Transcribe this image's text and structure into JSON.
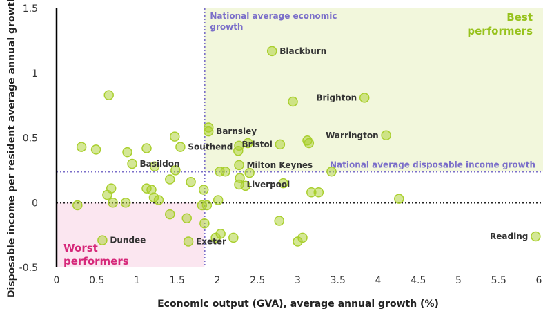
{
  "chart_data": {
    "type": "scatter",
    "xlabel": "Economic output (GVA), average annual growth (%)",
    "ylabel": "Disposable income per resident average annual growth",
    "xlim": [
      0,
      6
    ],
    "ylim": [
      -0.5,
      1.5
    ],
    "xticks": [
      "0",
      "0.5",
      "1",
      "1.5",
      "2",
      "2.5",
      "3",
      "3.5",
      "4",
      "4.5",
      "5",
      "5.5",
      "6"
    ],
    "yticks": [
      "1.5",
      "1",
      "0.5",
      "0",
      "-0.5"
    ],
    "grid": false,
    "reference_lines": {
      "vertical": {
        "x": 1.84,
        "label": "National average economic growth",
        "color": "#7b6fc9"
      },
      "horizontal": {
        "y": 0.24,
        "label": "National average disposable income growth",
        "color": "#7b6fc9"
      },
      "zero": {
        "y": 0,
        "color": "#222222"
      }
    },
    "regions": {
      "best": {
        "label": "Best performers",
        "color": "#f2f7dc",
        "text_color": "#97c21c"
      },
      "worst": {
        "label": "Worst performers",
        "color": "#fbe6f0",
        "text_color": "#d6287a"
      }
    },
    "point_color": "#a9cf2d",
    "points": [
      {
        "x": 0.65,
        "y": 0.83
      },
      {
        "x": 0.31,
        "y": 0.43
      },
      {
        "x": 0.49,
        "y": 0.41
      },
      {
        "x": 0.88,
        "y": 0.39
      },
      {
        "x": 1.12,
        "y": 0.42
      },
      {
        "x": 0.94,
        "y": 0.3,
        "label": "Basildon"
      },
      {
        "x": 1.47,
        "y": 0.51
      },
      {
        "x": 1.54,
        "y": 0.43,
        "label": "Southend"
      },
      {
        "x": 1.22,
        "y": 0.28
      },
      {
        "x": 1.48,
        "y": 0.25
      },
      {
        "x": 1.41,
        "y": 0.18
      },
      {
        "x": 1.67,
        "y": 0.16
      },
      {
        "x": 1.83,
        "y": 0.1
      },
      {
        "x": 0.68,
        "y": 0.11
      },
      {
        "x": 0.63,
        "y": 0.06
      },
      {
        "x": 1.12,
        "y": 0.11
      },
      {
        "x": 1.18,
        "y": 0.1
      },
      {
        "x": 1.21,
        "y": 0.04
      },
      {
        "x": 1.27,
        "y": 0.02
      },
      {
        "x": 0.7,
        "y": 0.0
      },
      {
        "x": 0.86,
        "y": 0.0
      },
      {
        "x": 0.26,
        "y": -0.02
      },
      {
        "x": 1.41,
        "y": -0.09
      },
      {
        "x": 1.62,
        "y": -0.12
      },
      {
        "x": 1.81,
        "y": -0.02
      },
      {
        "x": 1.87,
        "y": -0.02
      },
      {
        "x": 1.84,
        "y": -0.16
      },
      {
        "x": 0.57,
        "y": -0.29,
        "label": "Dundee"
      },
      {
        "x": 1.64,
        "y": -0.3,
        "label": "Exeter"
      },
      {
        "x": 1.89,
        "y": 0.58
      },
      {
        "x": 1.89,
        "y": 0.55,
        "label": "Barnsley"
      },
      {
        "x": 2.27,
        "y": 0.44
      },
      {
        "x": 2.26,
        "y": 0.4
      },
      {
        "x": 2.38,
        "y": 0.46
      },
      {
        "x": 2.27,
        "y": 0.29,
        "label": "Milton Keynes"
      },
      {
        "x": 2.03,
        "y": 0.24
      },
      {
        "x": 2.1,
        "y": 0.24
      },
      {
        "x": 2.4,
        "y": 0.23
      },
      {
        "x": 2.28,
        "y": 0.19
      },
      {
        "x": 2.27,
        "y": 0.14,
        "label": "Liverpool"
      },
      {
        "x": 2.35,
        "y": 0.13
      },
      {
        "x": 2.82,
        "y": 0.15
      },
      {
        "x": 2.01,
        "y": 0.02
      },
      {
        "x": 2.77,
        "y": -0.14
      },
      {
        "x": 2.04,
        "y": -0.24
      },
      {
        "x": 1.98,
        "y": -0.27
      },
      {
        "x": 2.2,
        "y": -0.27
      },
      {
        "x": 3.0,
        "y": -0.3
      },
      {
        "x": 3.06,
        "y": -0.27
      },
      {
        "x": 3.17,
        "y": 0.08
      },
      {
        "x": 3.26,
        "y": 0.08
      },
      {
        "x": 3.42,
        "y": 0.24
      },
      {
        "x": 2.78,
        "y": 0.45,
        "label": "Bristol"
      },
      {
        "x": 3.12,
        "y": 0.48
      },
      {
        "x": 3.14,
        "y": 0.46
      },
      {
        "x": 2.68,
        "y": 1.17,
        "label": "Blackburn"
      },
      {
        "x": 2.94,
        "y": 0.78
      },
      {
        "x": 3.83,
        "y": 0.81,
        "label": "Brighton"
      },
      {
        "x": 4.1,
        "y": 0.52,
        "label": "Warrington"
      },
      {
        "x": 4.26,
        "y": 0.03
      },
      {
        "x": 5.96,
        "y": -0.26,
        "label": "Reading"
      }
    ]
  }
}
